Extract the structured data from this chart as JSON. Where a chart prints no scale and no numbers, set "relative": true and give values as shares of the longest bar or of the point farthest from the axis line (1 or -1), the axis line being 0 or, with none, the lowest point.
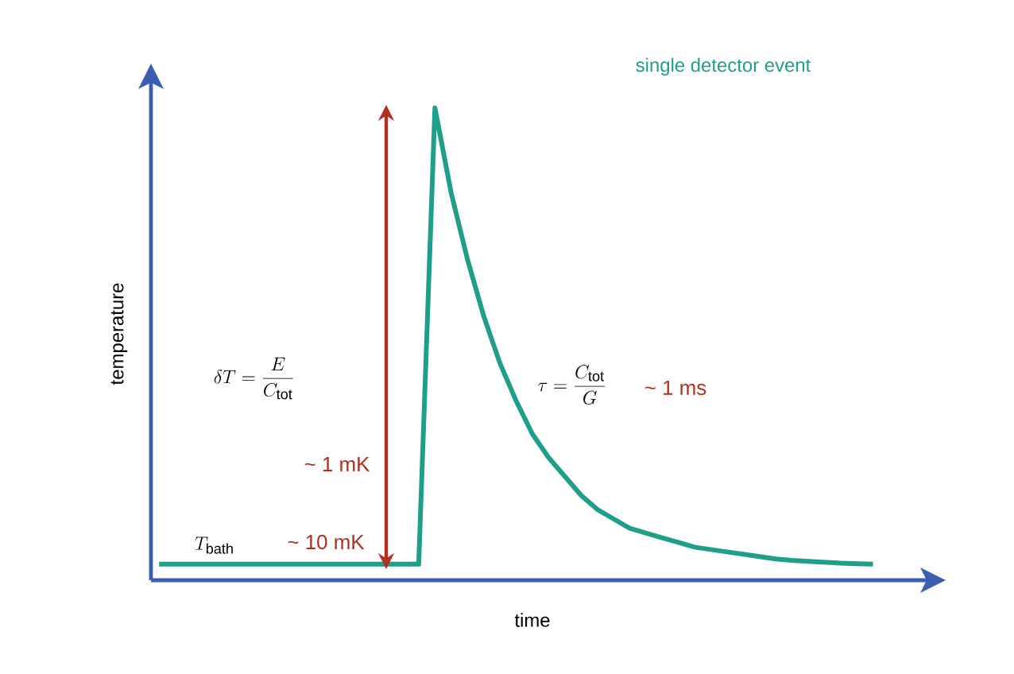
{
  "chart_data": {
    "type": "line",
    "relative": true,
    "title": "single detector event",
    "xlabel": "time",
    "ylabel": "temperature",
    "categories": [
      null,
      null,
      null,
      null,
      null,
      null,
      null,
      null,
      null,
      null,
      null,
      null,
      null,
      null,
      null,
      null,
      null,
      null,
      null,
      null,
      null,
      null,
      null,
      null,
      null,
      null,
      null,
      null,
      null,
      null,
      null,
      null,
      null,
      null,
      null,
      null,
      null,
      null,
      null,
      null,
      null,
      null,
      null,
      null,
      null
    ],
    "series": [
      {
        "color": "#1f9e89",
        "values": [
          0.034,
          0.034,
          0.034,
          0.034,
          0.034,
          0.034,
          0.034,
          0.034,
          0.034,
          0.034,
          0.034,
          0.034,
          0.034,
          0.034,
          0.034,
          0.034,
          0.034,
          1,
          0.82,
          0.68,
          0.56,
          0.46,
          0.38,
          0.31,
          0.26,
          0.22,
          0.18,
          0.15,
          0.13,
          0.11,
          0.1,
          0.09,
          0.08,
          0.07,
          0.065,
          0.06,
          0.055,
          0.05,
          0.045,
          0.042,
          0.04,
          0.038,
          0.036,
          0.035,
          0.034
        ]
      }
    ],
    "annotations": [
      "\\delta T = \\frac{E}{C_{\\rm tot}}",
      "~ 1 mK",
      "\\tau = \\frac{C_{\\rm tot}}{G}",
      "~ 1 ms",
      "T_{\\rm bath}",
      "~ 10 mK"
    ]
  }
}
